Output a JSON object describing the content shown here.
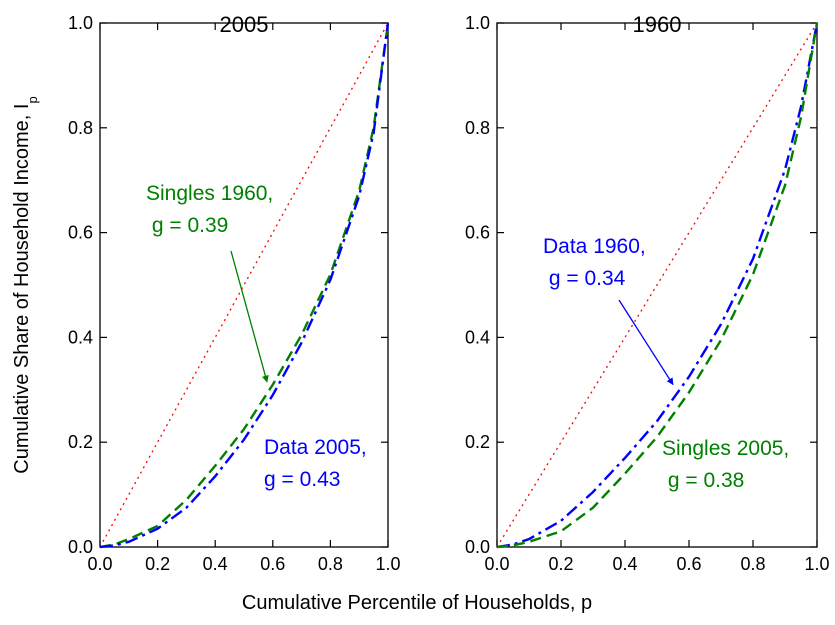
{
  "chart_data": [
    {
      "type": "line",
      "title": "2005",
      "xlabel": "",
      "ylabel": "Cumulative Share of Household Income, I",
      "ylabel_subscript": "p",
      "xlim": [
        0,
        1
      ],
      "ylim": [
        0,
        1
      ],
      "xticks": [
        "0.0",
        "0.2",
        "0.4",
        "0.6",
        "0.8",
        "1.0"
      ],
      "yticks": [
        "0.0",
        "0.2",
        "0.4",
        "0.6",
        "0.8",
        "1.0"
      ],
      "grid": false,
      "series": [
        {
          "style": "dotted",
          "color": "#ff0000",
          "x": [
            0,
            1
          ],
          "y": [
            0,
            1
          ]
        },
        {
          "name": "Singles 1960",
          "style": "dashed",
          "color": "#008000",
          "x": [
            0,
            0.05,
            0.1,
            0.2,
            0.3,
            0.4,
            0.5,
            0.6,
            0.7,
            0.8,
            0.9,
            0.95,
            1.0
          ],
          "y": [
            0,
            0.005,
            0.015,
            0.04,
            0.09,
            0.155,
            0.225,
            0.31,
            0.405,
            0.52,
            0.68,
            0.8,
            1.0
          ]
        },
        {
          "name": "Data 2005",
          "style": "dash-dot",
          "color": "#0000ff",
          "x": [
            0,
            0.05,
            0.1,
            0.2,
            0.3,
            0.4,
            0.5,
            0.6,
            0.7,
            0.8,
            0.9,
            0.95,
            1.0
          ],
          "y": [
            0,
            0.003,
            0.01,
            0.035,
            0.075,
            0.135,
            0.205,
            0.29,
            0.39,
            0.51,
            0.67,
            0.79,
            1.0
          ]
        }
      ],
      "annotations": [
        {
          "lines": [
            "Singles 1960,",
            " g = 0.39"
          ],
          "color": "#008000",
          "arrow_to": [
            0.58,
            0.315
          ]
        },
        {
          "lines": [
            "Data 2005,",
            "g = 0.43"
          ],
          "color": "#0000ff"
        }
      ]
    },
    {
      "type": "line",
      "title": "1960",
      "xlabel": "",
      "ylabel": "",
      "xlim": [
        0,
        1
      ],
      "ylim": [
        0,
        1
      ],
      "xticks": [
        "0.0",
        "0.2",
        "0.4",
        "0.6",
        "0.8",
        "1.0"
      ],
      "yticks": [
        "0.0",
        "0.2",
        "0.4",
        "0.6",
        "0.8",
        "1.0"
      ],
      "grid": false,
      "series": [
        {
          "style": "dotted",
          "color": "#ff0000",
          "x": [
            0,
            1
          ],
          "y": [
            0,
            1
          ]
        },
        {
          "name": "Data 1960",
          "style": "dash-dot",
          "color": "#0000ff",
          "x": [
            0,
            0.05,
            0.1,
            0.2,
            0.3,
            0.4,
            0.5,
            0.6,
            0.7,
            0.8,
            0.9,
            0.95,
            1.0
          ],
          "y": [
            0,
            0.005,
            0.015,
            0.05,
            0.105,
            0.17,
            0.24,
            0.325,
            0.425,
            0.55,
            0.72,
            0.84,
            1.0
          ]
        },
        {
          "name": "Singles 2005",
          "style": "dashed",
          "color": "#008000",
          "x": [
            0,
            0.05,
            0.1,
            0.2,
            0.3,
            0.4,
            0.5,
            0.6,
            0.7,
            0.8,
            0.9,
            0.95,
            1.0
          ],
          "y": [
            0,
            0.003,
            0.01,
            0.03,
            0.075,
            0.14,
            0.21,
            0.295,
            0.395,
            0.52,
            0.69,
            0.82,
            1.0
          ]
        }
      ],
      "annotations": [
        {
          "lines": [
            "Data 1960,",
            " g = 0.34"
          ],
          "color": "#0000ff",
          "arrow_to": [
            0.55,
            0.31
          ]
        },
        {
          "lines": [
            "Singles 2005,",
            " g = 0.38"
          ],
          "color": "#008000"
        }
      ]
    }
  ],
  "figure": {
    "shared_xlabel": "Cumulative Percentile of Households, p"
  }
}
